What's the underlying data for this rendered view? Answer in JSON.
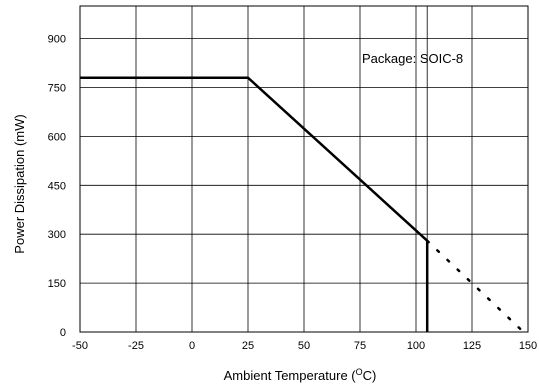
{
  "chart_data": {
    "type": "line",
    "xlabel_main": "Ambient Temperature (",
    "xlabel_sup": "O",
    "xlabel_tail": "C)",
    "ylabel": "Power Dissipation (mW)",
    "annotation": "Package: SOIC-8",
    "xlim": [
      -50,
      150
    ],
    "ylim": [
      0,
      1000
    ],
    "x_ticks": [
      -50,
      -25,
      0,
      25,
      50,
      75,
      100,
      125,
      150
    ],
    "y_ticks": [
      0,
      150,
      300,
      450,
      600,
      750,
      900
    ],
    "x_tick_labels": [
      "-50",
      "-25",
      "0",
      "25",
      "50",
      "75",
      "100",
      "125",
      "150"
    ],
    "y_tick_labels": [
      "0",
      "150",
      "300",
      "450",
      "600",
      "750",
      "900"
    ],
    "x_grid_lines": [
      -50,
      -25,
      0,
      25,
      50,
      75,
      100,
      105,
      125,
      150
    ],
    "y_grid_lines": [
      150,
      300,
      450,
      600,
      750,
      900
    ],
    "grid": true,
    "series": [
      {
        "style": "solid",
        "x": [
          -50,
          25,
          105,
          105
        ],
        "y": [
          780,
          780,
          280,
          0
        ]
      },
      {
        "style": "dotted",
        "x": [
          105,
          148
        ],
        "y": [
          280,
          0
        ]
      }
    ]
  }
}
